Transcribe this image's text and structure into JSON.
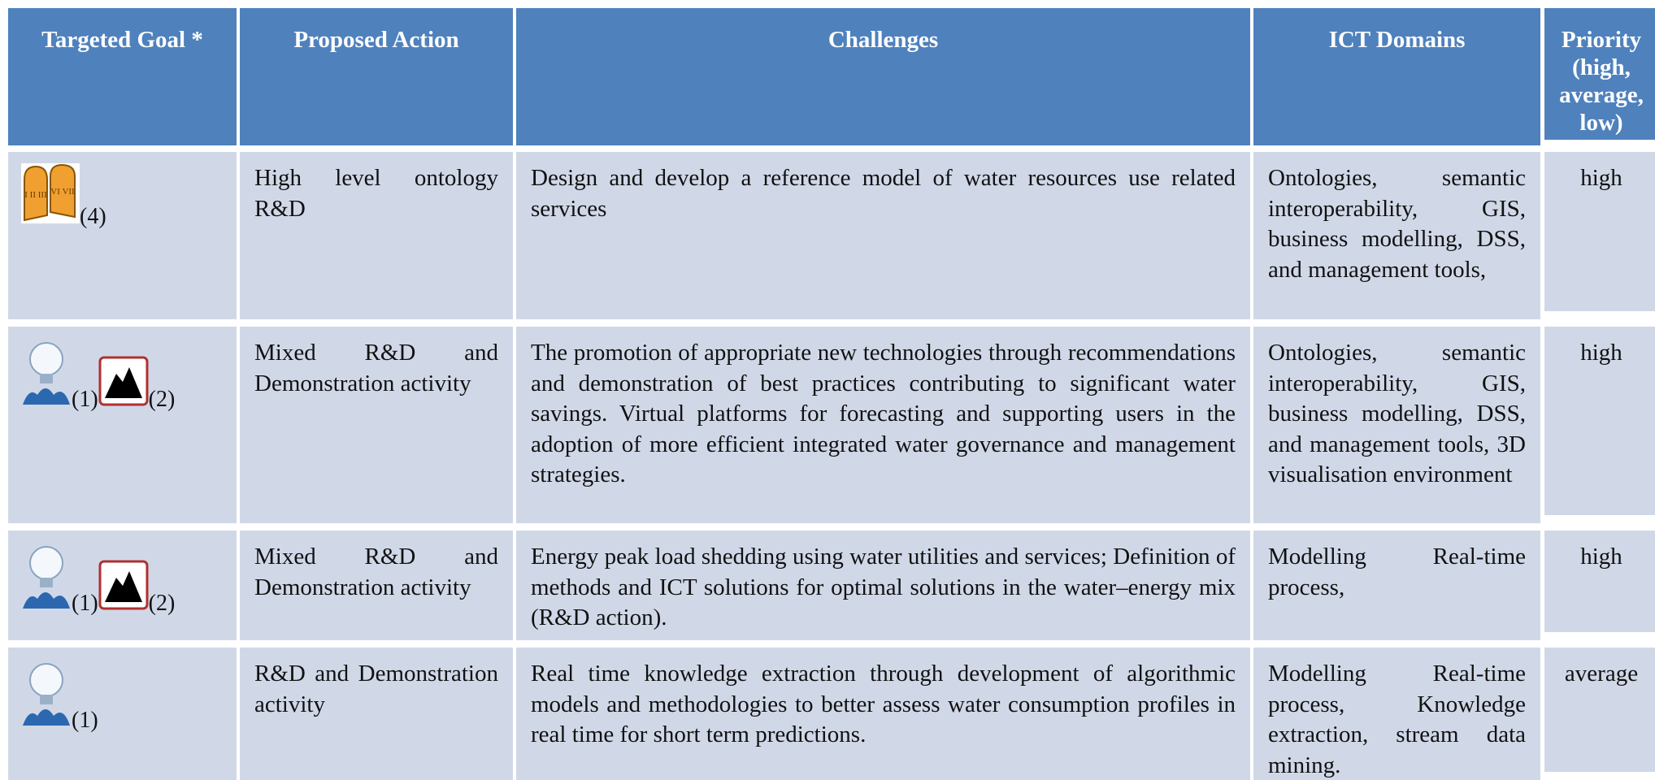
{
  "table": {
    "headers": [
      "Targeted Goal *",
      "Proposed Action",
      "Challenges",
      "ICT Domains",
      "Priority (high, average, low)"
    ],
    "rows": [
      {
        "goals": [
          "(4)"
        ],
        "action": "High level ontology R&D",
        "challenges": "Design and develop a reference model of water resources use related services",
        "domains": "Ontologies, semantic interoperability, GIS, business modelling, DSS, and management tools,",
        "priority": "high"
      },
      {
        "goals": [
          "(1)",
          "(2)"
        ],
        "action": "Mixed R&D and Demonstration activity",
        "challenges": "The promotion of appropriate new technologies through recommendations and demonstration of best practices contributing to significant water savings. Virtual platforms for forecasting and supporting users in the adoption of more efficient integrated water governance and management strategies.",
        "domains": "Ontologies, semantic interoperability, GIS, business modelling, DSS, and management tools, 3D visualisation environment",
        "priority": "high"
      },
      {
        "goals": [
          "(1)",
          "(2)"
        ],
        "action": "Mixed R&D and Demonstration activity",
        "challenges": "Energy peak load shedding using water utilities and services; Definition of methods and ICT solutions for optimal solutions in the water–energy mix (R&D action).",
        "domains": "Modelling Real-time process,",
        "priority": "high"
      },
      {
        "goals": [
          "(1)"
        ],
        "action": "R&D and Demonstration activity",
        "challenges": "Real time knowledge extraction through development of algorithmic models and methodologies to better assess water consumption profiles in real time for short term predictions.",
        "domains": "Modelling Real-time process, Knowledge extraction, stream data mining.",
        "priority": "average"
      }
    ]
  }
}
